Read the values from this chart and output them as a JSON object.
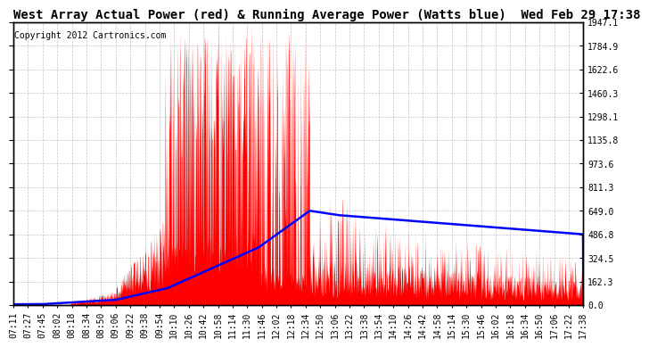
{
  "title": "West Array Actual Power (red) & Running Average Power (Watts blue)  Wed Feb 29 17:38",
  "copyright": "Copyright 2012 Cartronics.com",
  "ylabel_right_ticks": [
    0.0,
    162.3,
    324.5,
    486.8,
    649.0,
    811.3,
    973.6,
    1135.8,
    1298.1,
    1460.3,
    1622.6,
    1784.9,
    1947.1
  ],
  "ymax": 1947.1,
  "ymin": 0.0,
  "background_color": "#ffffff",
  "plot_bg_color": "#ffffff",
  "grid_color": "#aaaaaa",
  "red_color": "#ff0000",
  "blue_color": "#0000ff",
  "title_fontsize": 10,
  "copyright_fontsize": 7,
  "tick_fontsize": 7,
  "x_labels": [
    "07:11",
    "07:27",
    "07:45",
    "08:02",
    "08:18",
    "08:34",
    "08:50",
    "09:06",
    "09:22",
    "09:38",
    "09:54",
    "10:10",
    "10:26",
    "10:42",
    "10:58",
    "11:14",
    "11:30",
    "11:46",
    "12:02",
    "12:18",
    "12:34",
    "12:50",
    "13:06",
    "13:22",
    "13:38",
    "13:54",
    "14:10",
    "14:26",
    "14:42",
    "14:58",
    "15:14",
    "15:30",
    "15:46",
    "16:02",
    "16:18",
    "16:34",
    "16:50",
    "17:06",
    "17:22",
    "17:38"
  ]
}
